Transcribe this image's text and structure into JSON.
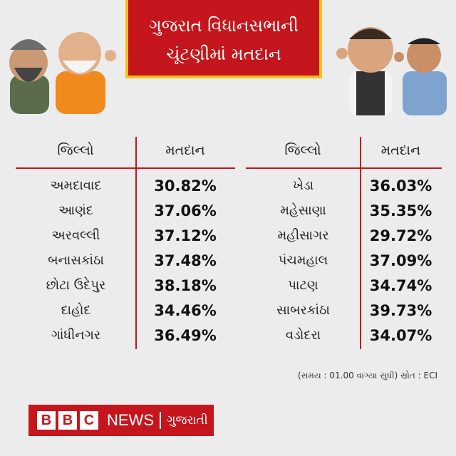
{
  "header": {
    "title_lines": [
      "ગુજરાત વિધાનસભાની",
      "ચૂંટણીમાં મતદાન"
    ]
  },
  "tables": [
    {
      "headers": [
        "જિલ્લો",
        "મતદાન"
      ],
      "rows": [
        [
          "અમદાવાદ",
          "30.82%"
        ],
        [
          "આણંદ",
          "37.06%"
        ],
        [
          "અરવલ્લી",
          "37.12%"
        ],
        [
          "બનાસકાંઠા",
          "37.48%"
        ],
        [
          "છોટા ઉદેપુર",
          "38.18%"
        ],
        [
          "દાહોદ",
          "34.46%"
        ],
        [
          "ગાંધીનગર",
          "36.49%"
        ]
      ]
    },
    {
      "headers": [
        "જિલ્લો",
        "મતદાન"
      ],
      "rows": [
        [
          "ખેડા",
          "36.03%"
        ],
        [
          "મહેસાણા",
          "35.35%"
        ],
        [
          "મહીસાગર",
          "29.72%"
        ],
        [
          "પંચમહાલ",
          "37.09%"
        ],
        [
          "પાટણ",
          "34.74%"
        ],
        [
          "સાબરકાંઠા",
          "39.73%"
        ],
        [
          "વડોદરા",
          "34.07%"
        ]
      ]
    }
  ],
  "footnote": "(સમય : 01.00 વાગ્યા સુધી) સ્રોત : ECI",
  "logo": {
    "letters": [
      "B",
      "B",
      "C"
    ],
    "news": "NEWS",
    "language": "ગુજરાતી"
  }
}
